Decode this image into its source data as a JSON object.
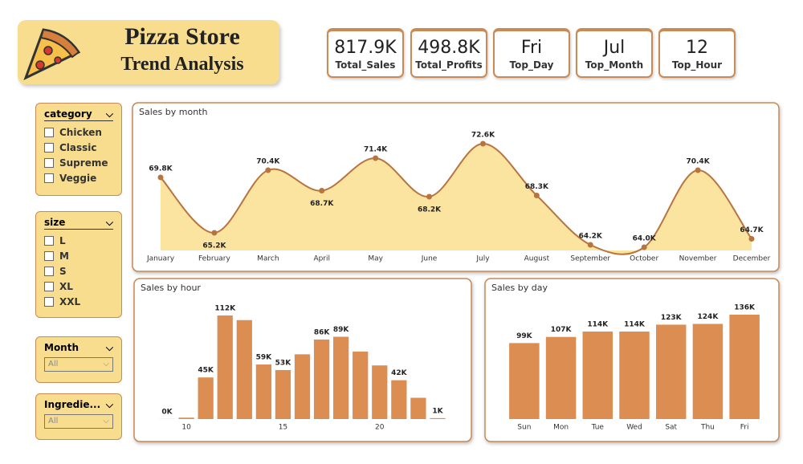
{
  "header": {
    "title": "Pizza Store",
    "subtitle": "Trend Analysis"
  },
  "kpis": [
    {
      "value": "817.9K",
      "label": "Total_Sales"
    },
    {
      "value": "498.8K",
      "label": "Total_Profits"
    },
    {
      "value": "Fri",
      "label": "Top_Day"
    },
    {
      "value": "Jul",
      "label": "Top_Month"
    },
    {
      "value": "12",
      "label": "Top_Hour"
    }
  ],
  "slicers": {
    "category": {
      "title": "category",
      "items": [
        "Chicken",
        "Classic",
        "Supreme",
        "Veggie"
      ]
    },
    "size": {
      "title": "size",
      "items": [
        "L",
        "M",
        "S",
        "XL",
        "XXL"
      ]
    },
    "month": {
      "title": "Month",
      "selected": "All"
    },
    "ingredients": {
      "title": "Ingredie...",
      "selected": "All"
    }
  },
  "chart_data": [
    {
      "type": "line",
      "title": "Sales by month",
      "color": "#b8743f",
      "fill_color": "#fbe3a0",
      "categories": [
        "January",
        "February",
        "March",
        "April",
        "May",
        "June",
        "July",
        "August",
        "September",
        "October",
        "November",
        "December"
      ],
      "values": [
        69800,
        65200,
        70400,
        68700,
        71400,
        68200,
        72600,
        68300,
        64200,
        64000,
        70400,
        64700
      ],
      "value_labels": [
        "69.8K",
        "65.2K",
        "70.4K",
        "68.7K",
        "71.4K",
        "68.2K",
        "72.6K",
        "68.3K",
        "64.2K",
        "64.0K",
        "70.4K",
        "64.7K"
      ]
    },
    {
      "type": "bar",
      "title": "Sales by hour",
      "color": "#dc8d52",
      "x": [
        9,
        10,
        11,
        12,
        13,
        14,
        15,
        16,
        17,
        18,
        19,
        20,
        21,
        22,
        23
      ],
      "values": [
        100,
        1500,
        45000,
        112000,
        107000,
        59000,
        53000,
        70000,
        86000,
        89000,
        73000,
        58000,
        42000,
        23000,
        1000
      ],
      "value_labels": [
        "0K",
        null,
        "45K",
        "112K",
        null,
        "59K",
        "53K",
        null,
        "86K",
        "89K",
        null,
        null,
        "42K",
        null,
        "1K"
      ],
      "xlim": [
        8.5,
        23.5
      ],
      "xticks": [
        10,
        15,
        20
      ]
    },
    {
      "type": "bar",
      "title": "Sales by day",
      "color": "#dc8d52",
      "categories": [
        "Sun",
        "Mon",
        "Tue",
        "Wed",
        "Sat",
        "Thu",
        "Fri"
      ],
      "values": [
        99000,
        107000,
        114000,
        114000,
        123000,
        124000,
        136000
      ],
      "value_labels": [
        "99K",
        "107K",
        "114K",
        "114K",
        "123K",
        "124K",
        "136K"
      ]
    }
  ]
}
